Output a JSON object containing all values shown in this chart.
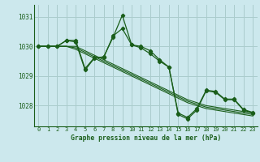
{
  "title": "Graphe pression niveau de la mer (hPa)",
  "background_color": "#cce8ed",
  "grid_color": "#aacccc",
  "line_color": "#1a5e1a",
  "marker_color": "#1a5e1a",
  "text_color": "#1a5e1a",
  "xlim": [
    -0.5,
    23.5
  ],
  "ylim": [
    1027.3,
    1031.4
  ],
  "yticks": [
    1028,
    1029,
    1030,
    1031
  ],
  "xticks": [
    0,
    1,
    2,
    3,
    4,
    5,
    6,
    7,
    8,
    9,
    10,
    11,
    12,
    13,
    14,
    15,
    16,
    17,
    18,
    19,
    20,
    21,
    22,
    23
  ],
  "series_straight": [
    [
      1030.0,
      1030.0,
      1030.0,
      1030.0,
      1030.0,
      1029.85,
      1029.7,
      1029.55,
      1029.4,
      1029.25,
      1029.1,
      1028.95,
      1028.8,
      1028.65,
      1028.5,
      1028.35,
      1028.2,
      1028.1,
      1028.0,
      1027.95,
      1027.9,
      1027.85,
      1027.8,
      1027.75
    ],
    [
      1030.0,
      1030.0,
      1030.0,
      1030.0,
      1029.95,
      1029.8,
      1029.65,
      1029.5,
      1029.35,
      1029.2,
      1029.05,
      1028.9,
      1028.75,
      1028.6,
      1028.45,
      1028.3,
      1028.15,
      1028.05,
      1027.95,
      1027.9,
      1027.85,
      1027.8,
      1027.75,
      1027.7
    ],
    [
      1030.0,
      1030.0,
      1030.0,
      1030.0,
      1029.9,
      1029.75,
      1029.6,
      1029.45,
      1029.3,
      1029.15,
      1029.0,
      1028.85,
      1028.7,
      1028.55,
      1028.4,
      1028.25,
      1028.1,
      1028.0,
      1027.9,
      1027.85,
      1027.8,
      1027.75,
      1027.7,
      1027.65
    ]
  ],
  "series_zigzag": [
    1030.0,
    1030.0,
    1030.0,
    1030.2,
    1030.15,
    1029.2,
    1029.6,
    1029.65,
    1030.3,
    1031.05,
    1030.05,
    1030.0,
    1029.85,
    1029.55,
    1029.3,
    1027.7,
    1027.55,
    1027.85,
    1028.5,
    1028.45,
    1028.2,
    1028.2,
    1027.85,
    1027.75
  ],
  "series_zigzag2": [
    1030.0,
    1030.0,
    1030.0,
    1030.2,
    1030.2,
    1029.25,
    1029.62,
    1029.62,
    1030.35,
    1030.6,
    1030.05,
    1029.95,
    1029.75,
    1029.5,
    1029.3,
    1027.75,
    1027.6,
    1027.9,
    1028.52,
    1028.48,
    1028.22,
    1028.22,
    1027.87,
    1027.77
  ]
}
